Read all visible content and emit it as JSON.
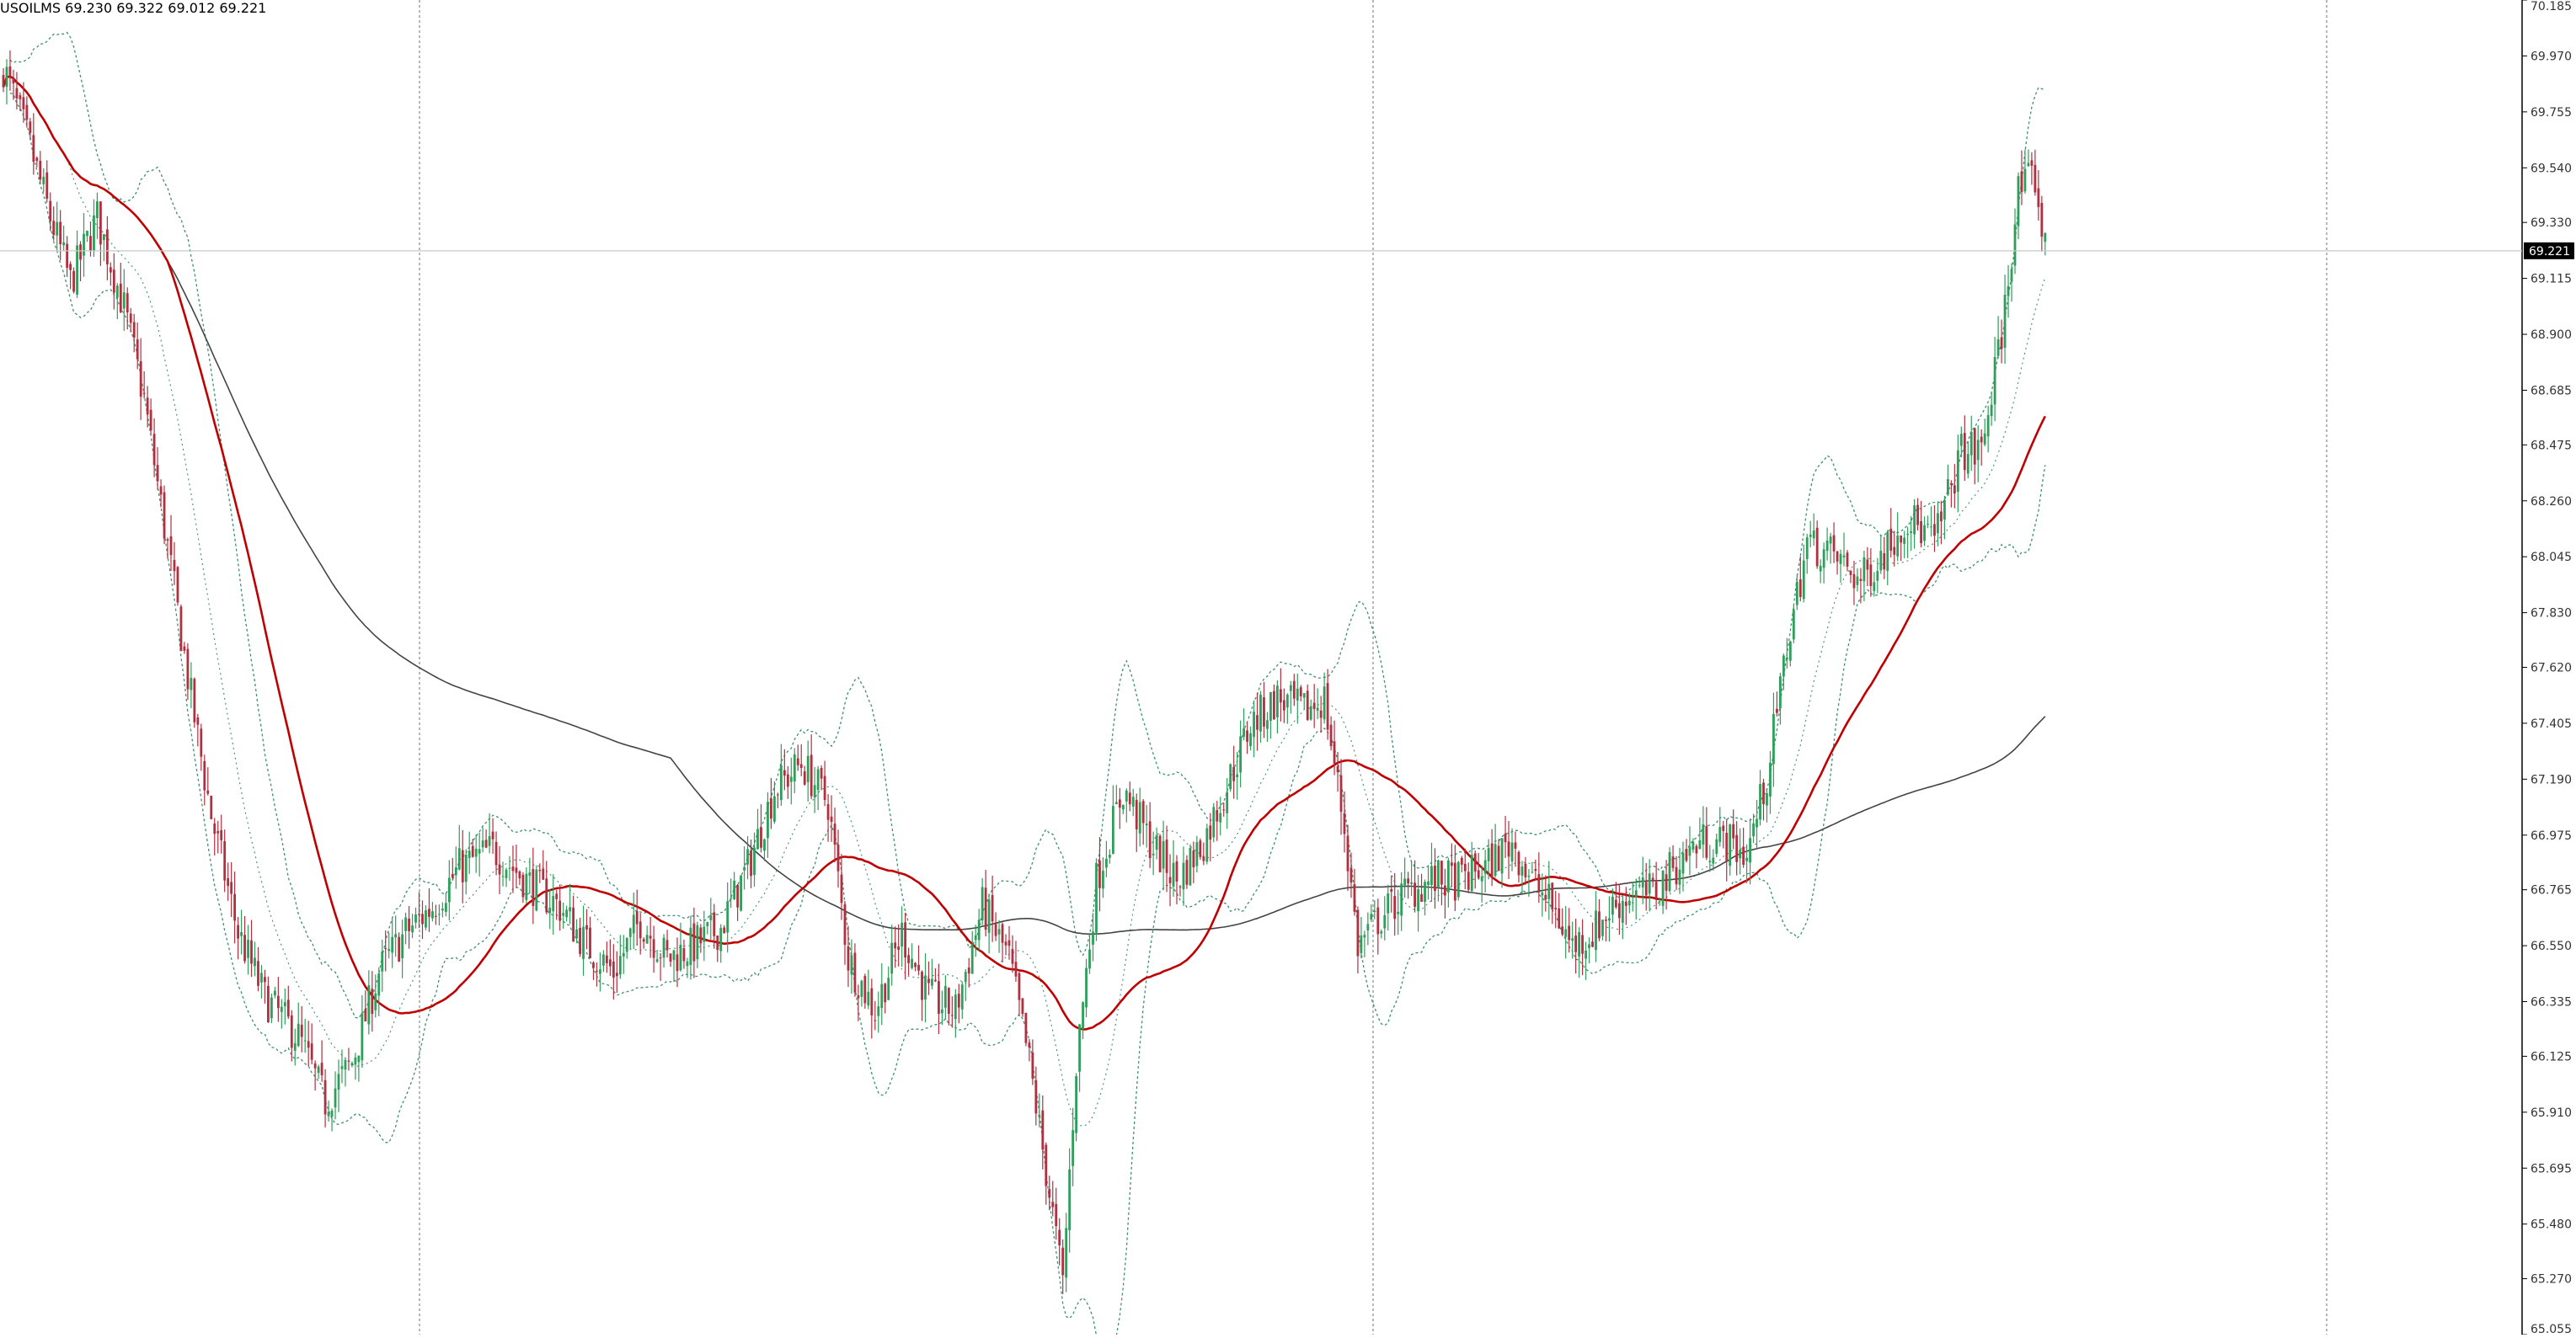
{
  "header": {
    "symbol": "USOILMS",
    "ohlc_text": "69.230 69.322 69.012 69.221"
  },
  "colors": {
    "background": "#ffffff",
    "bull": "#2e9e5a",
    "bear": "#b03040",
    "ma_fast": "#c00000",
    "ma_slow": "#444444",
    "bands": "#3f8f6f",
    "grid": "#888888",
    "price_line": "#c8c8c8",
    "badge_bg": "#000000"
  },
  "chart_data": {
    "type": "candlestick",
    "y_axis": {
      "min": 65.055,
      "max": 70.185,
      "ticks": [
        "70.185",
        "69.970",
        "69.755",
        "69.540",
        "69.330",
        "69.115",
        "68.900",
        "68.685",
        "68.475",
        "68.260",
        "68.045",
        "67.830",
        "67.620",
        "67.405",
        "67.190",
        "66.975",
        "66.765",
        "66.550",
        "66.335",
        "66.125",
        "65.910",
        "65.695",
        "65.480",
        "65.270",
        "65.055"
      ]
    },
    "current_price": "69.221",
    "indicators": [
      "moving_average_fast",
      "moving_average_slow",
      "bollinger_bands"
    ],
    "close_anchors": [
      [
        0,
        69.93
      ],
      [
        8,
        69.62
      ],
      [
        14,
        69.35
      ],
      [
        20,
        69.1
      ],
      [
        28,
        69.35
      ],
      [
        36,
        69.0
      ],
      [
        42,
        68.65
      ],
      [
        50,
        68.0
      ],
      [
        56,
        67.5
      ],
      [
        62,
        67.05
      ],
      [
        70,
        66.6
      ],
      [
        78,
        66.35
      ],
      [
        88,
        66.2
      ],
      [
        96,
        65.95
      ],
      [
        104,
        66.1
      ],
      [
        112,
        66.45
      ],
      [
        120,
        66.6
      ],
      [
        128,
        66.7
      ],
      [
        136,
        66.85
      ],
      [
        146,
        66.92
      ],
      [
        156,
        66.8
      ],
      [
        166,
        66.7
      ],
      [
        174,
        66.55
      ],
      [
        182,
        66.45
      ],
      [
        190,
        66.65
      ],
      [
        198,
        66.5
      ],
      [
        206,
        66.55
      ],
      [
        214,
        66.62
      ],
      [
        222,
        66.85
      ],
      [
        230,
        67.15
      ],
      [
        238,
        67.25
      ],
      [
        246,
        67.1
      ],
      [
        252,
        66.5
      ],
      [
        260,
        66.3
      ],
      [
        268,
        66.6
      ],
      [
        276,
        66.35
      ],
      [
        284,
        66.3
      ],
      [
        292,
        66.7
      ],
      [
        300,
        66.5
      ],
      [
        306,
        66.1
      ],
      [
        312,
        65.6
      ],
      [
        316,
        65.25
      ],
      [
        320,
        66.1
      ],
      [
        326,
        66.8
      ],
      [
        334,
        67.15
      ],
      [
        342,
        66.95
      ],
      [
        350,
        66.8
      ],
      [
        358,
        66.95
      ],
      [
        366,
        67.2
      ],
      [
        372,
        67.4
      ],
      [
        380,
        67.5
      ],
      [
        388,
        67.45
      ],
      [
        394,
        67.5
      ],
      [
        400,
        67.0
      ],
      [
        404,
        66.55
      ],
      [
        410,
        66.65
      ],
      [
        418,
        66.75
      ],
      [
        426,
        66.8
      ],
      [
        434,
        66.8
      ],
      [
        442,
        66.85
      ],
      [
        450,
        66.95
      ],
      [
        456,
        66.8
      ],
      [
        462,
        66.7
      ],
      [
        468,
        66.55
      ],
      [
        474,
        66.6
      ],
      [
        480,
        66.7
      ],
      [
        486,
        66.75
      ],
      [
        492,
        66.75
      ],
      [
        498,
        66.85
      ],
      [
        506,
        66.95
      ],
      [
        514,
        66.95
      ],
      [
        520,
        66.9
      ],
      [
        526,
        67.2
      ],
      [
        532,
        67.7
      ],
      [
        538,
        68.1
      ],
      [
        546,
        68.05
      ],
      [
        554,
        67.95
      ],
      [
        560,
        68.05
      ],
      [
        568,
        68.2
      ],
      [
        576,
        68.1
      ],
      [
        584,
        68.45
      ],
      [
        590,
        68.45
      ],
      [
        596,
        68.9
      ],
      [
        601,
        69.45
      ],
      [
        606,
        69.5
      ],
      [
        609,
        69.22
      ]
    ]
  }
}
